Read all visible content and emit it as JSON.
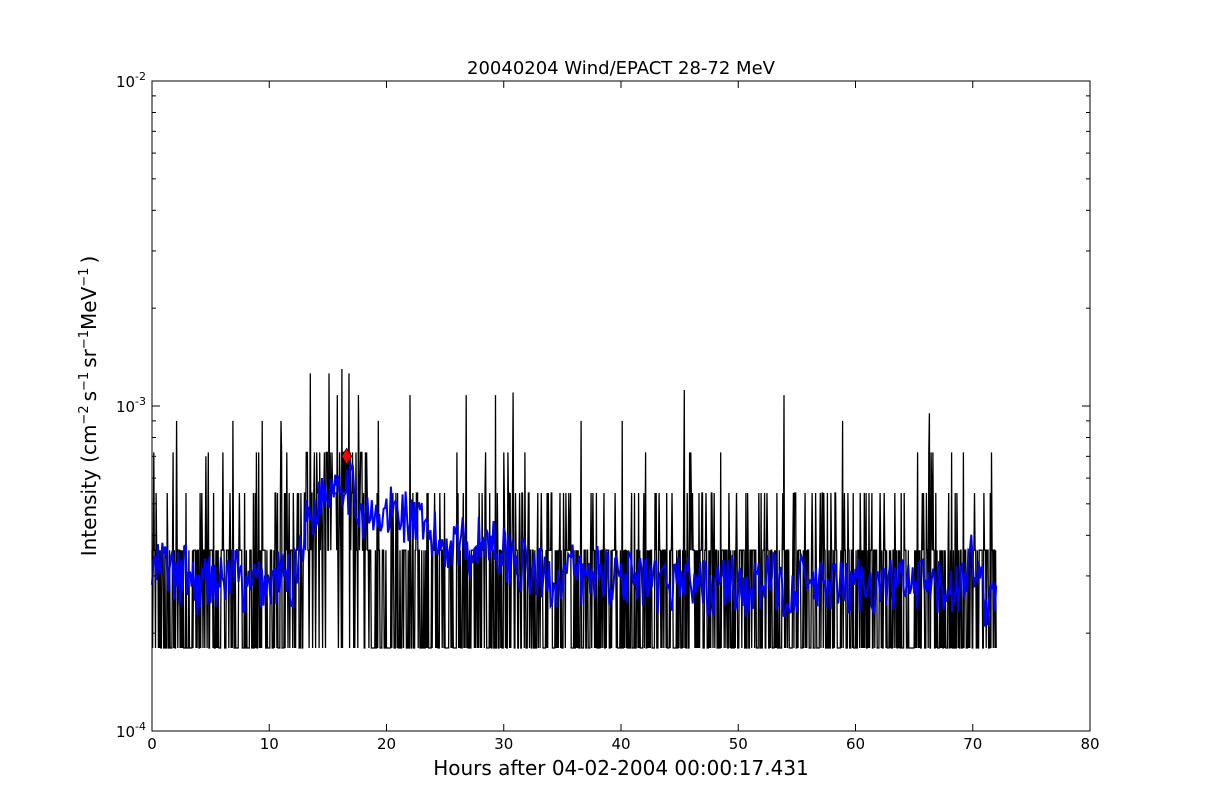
{
  "chart_data": {
    "type": "line",
    "title": "20040204 Wind/EPACT 28-72 MeV",
    "xlabel": "Hours after 04-02-2004 00:00:17.431",
    "ylabel": {
      "base": "Intensity (cm",
      "exp1": "−2",
      "mid1": "s",
      "exp2": "−1",
      "mid2": "sr",
      "exp3": "−1",
      "mid3": "MeV",
      "exp4": "−1",
      "end": ")"
    },
    "xlim": [
      0,
      80
    ],
    "ylim": [
      0.0001,
      0.01
    ],
    "yscale": "log",
    "grid": false,
    "x_ticks": [
      {
        "value": 0,
        "label": "0"
      },
      {
        "value": 10,
        "label": "10"
      },
      {
        "value": 20,
        "label": "20"
      },
      {
        "value": 30,
        "label": "30"
      },
      {
        "value": 40,
        "label": "40"
      },
      {
        "value": 50,
        "label": "50"
      },
      {
        "value": 60,
        "label": "60"
      },
      {
        "value": 70,
        "label": "70"
      },
      {
        "value": 80,
        "label": "80"
      }
    ],
    "y_ticks": [
      {
        "value": 0.0001,
        "base": "10",
        "exp": "-4"
      },
      {
        "value": 0.001,
        "base": "10",
        "exp": "-3"
      },
      {
        "value": 0.01,
        "base": "10",
        "exp": "-2"
      }
    ],
    "raw_levels": [
      0.00018,
      0.00036,
      0.00054,
      0.00072,
      0.0009,
      0.00108,
      0.00126
    ],
    "raw_spikes": [
      {
        "x": 2.1,
        "y": 0.0009
      },
      {
        "x": 4.6,
        "y": 0.0007
      },
      {
        "x": 6.9,
        "y": 0.0009
      },
      {
        "x": 9.4,
        "y": 0.0009
      },
      {
        "x": 11.0,
        "y": 0.0009
      },
      {
        "x": 13.5,
        "y": 0.00126
      },
      {
        "x": 15.1,
        "y": 0.00126
      },
      {
        "x": 15.8,
        "y": 0.00108
      },
      {
        "x": 16.2,
        "y": 0.0013
      },
      {
        "x": 16.8,
        "y": 0.00126
      },
      {
        "x": 17.6,
        "y": 0.00108
      },
      {
        "x": 19.3,
        "y": 0.0009
      },
      {
        "x": 22.0,
        "y": 0.00108
      },
      {
        "x": 26.8,
        "y": 0.00108
      },
      {
        "x": 29.3,
        "y": 0.00108
      },
      {
        "x": 30.8,
        "y": 0.0011
      },
      {
        "x": 36.6,
        "y": 0.0009
      },
      {
        "x": 40.1,
        "y": 0.0009
      },
      {
        "x": 45.4,
        "y": 0.00112
      },
      {
        "x": 53.9,
        "y": 0.00108
      },
      {
        "x": 58.9,
        "y": 0.0009
      },
      {
        "x": 66.3,
        "y": 0.00095
      }
    ],
    "raw_end": 72.0,
    "series": [
      {
        "role": "raw",
        "color": "#000000",
        "x_start": 0,
        "x_end": 72.0
      },
      {
        "role": "smoothed",
        "color": "#0000ff",
        "x": [
          0,
          1,
          2,
          3,
          4,
          5,
          6,
          7,
          8,
          9,
          10,
          11,
          12,
          13,
          14,
          15,
          16,
          17,
          18,
          19,
          20,
          21,
          22,
          23,
          24,
          25,
          26,
          27,
          28,
          29,
          30,
          31,
          32,
          33,
          34,
          35,
          36,
          37,
          38,
          39,
          40,
          41,
          42,
          43,
          44,
          45,
          46,
          47,
          48,
          49,
          50,
          51,
          52,
          53,
          54,
          55,
          56,
          57,
          58,
          59,
          60,
          61,
          62,
          63,
          64,
          65,
          66,
          67,
          68,
          69,
          70,
          71,
          72
        ],
        "y": [
          0.0003,
          0.00033,
          0.00029,
          0.00031,
          0.00027,
          0.0003,
          0.00028,
          0.00032,
          0.00026,
          0.00029,
          0.00028,
          0.0003,
          0.00029,
          0.00042,
          0.0005,
          0.00056,
          0.00062,
          0.00055,
          0.00047,
          0.00043,
          0.00046,
          0.00048,
          0.00045,
          0.00041,
          0.00039,
          0.00037,
          0.0004,
          0.00036,
          0.00038,
          0.00039,
          0.00035,
          0.00034,
          0.00031,
          0.0003,
          0.00029,
          0.0003,
          0.00031,
          0.00028,
          0.00032,
          0.0003,
          0.00031,
          0.00029,
          0.00028,
          0.00027,
          0.00028,
          0.0003,
          0.00029,
          0.00028,
          0.00027,
          0.00029,
          0.00028,
          0.00027,
          0.00028,
          0.00029,
          0.00027,
          0.00028,
          0.00029,
          0.00027,
          0.00028,
          0.00027,
          0.00028,
          0.00029,
          0.00027,
          0.00028,
          0.00029,
          0.00027,
          0.00028,
          0.00027,
          0.00028,
          0.00027,
          0.00035,
          0.00025,
          0.00028
        ]
      }
    ],
    "marker": {
      "x": 16.6,
      "y": 0.0007,
      "shape": "diamond",
      "color": "#ff0000"
    }
  }
}
